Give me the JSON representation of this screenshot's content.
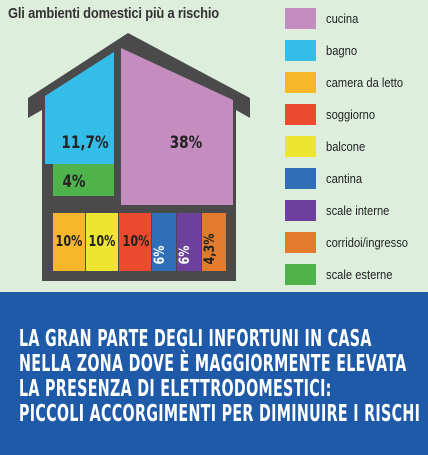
{
  "title": "Gli ambienti domestici più a rischio",
  "chart_data": {
    "type": "treemap",
    "title": "Gli ambienti domestici più a rischio",
    "segments": [
      {
        "name": "cucina",
        "value_label": "38%",
        "value": 38,
        "color": "#c58cc0"
      },
      {
        "name": "bagno",
        "value_label": "11,7%",
        "value": 11.7,
        "color": "#35bdea"
      },
      {
        "name": "camera da letto",
        "value_label": "10%",
        "value": 10,
        "color": "#f8b72a"
      },
      {
        "name": "soggiorno",
        "value_label": "10%",
        "value": 10,
        "color": "#ec4a2c"
      },
      {
        "name": "balcone",
        "value_label": "10%",
        "value": 10,
        "color": "#ede530"
      },
      {
        "name": "cantina",
        "value_label": "6%",
        "value": 6,
        "color": "#2f6fb8"
      },
      {
        "name": "scale interne",
        "value_label": "6%",
        "value": 6,
        "color": "#6d40a0"
      },
      {
        "name": "corridoi/ingresso",
        "value_label": "4,3%",
        "value": 4.3,
        "color": "#e37a2c"
      },
      {
        "name": "scale esterne",
        "value_label": "4%",
        "value": 4,
        "color": "#4db34a"
      }
    ]
  },
  "legend": [
    {
      "label": "cucina",
      "color": "#c58cc0"
    },
    {
      "label": "bagno",
      "color": "#35bdea"
    },
    {
      "label": "camera da letto",
      "color": "#f8b72a"
    },
    {
      "label": "soggiorno",
      "color": "#ec4a2c"
    },
    {
      "label": "balcone",
      "color": "#ede530"
    },
    {
      "label": "cantina",
      "color": "#2f6fb8"
    },
    {
      "label": "scale interne",
      "color": "#6d40a0"
    },
    {
      "label": "corridoi/ingresso",
      "color": "#e37a2c"
    },
    {
      "label": "scale esterne",
      "color": "#4db34a"
    }
  ],
  "banner": {
    "lines": [
      "LA GRAN PARTE DEGLI INFORTUNI IN CASA",
      "NELLA ZONA DOVE È MAGGIORMENTE ELEVATA",
      "LA PRESENZA DI ELETTRODOMESTICI:",
      "PICCOLI ACCORGIMENTI PER DIMINUIRE I RISCHI"
    ],
    "background": "#1f5aa8"
  },
  "colors": {
    "background": "#ddeedd",
    "house_outline": "#4a4a4a"
  }
}
